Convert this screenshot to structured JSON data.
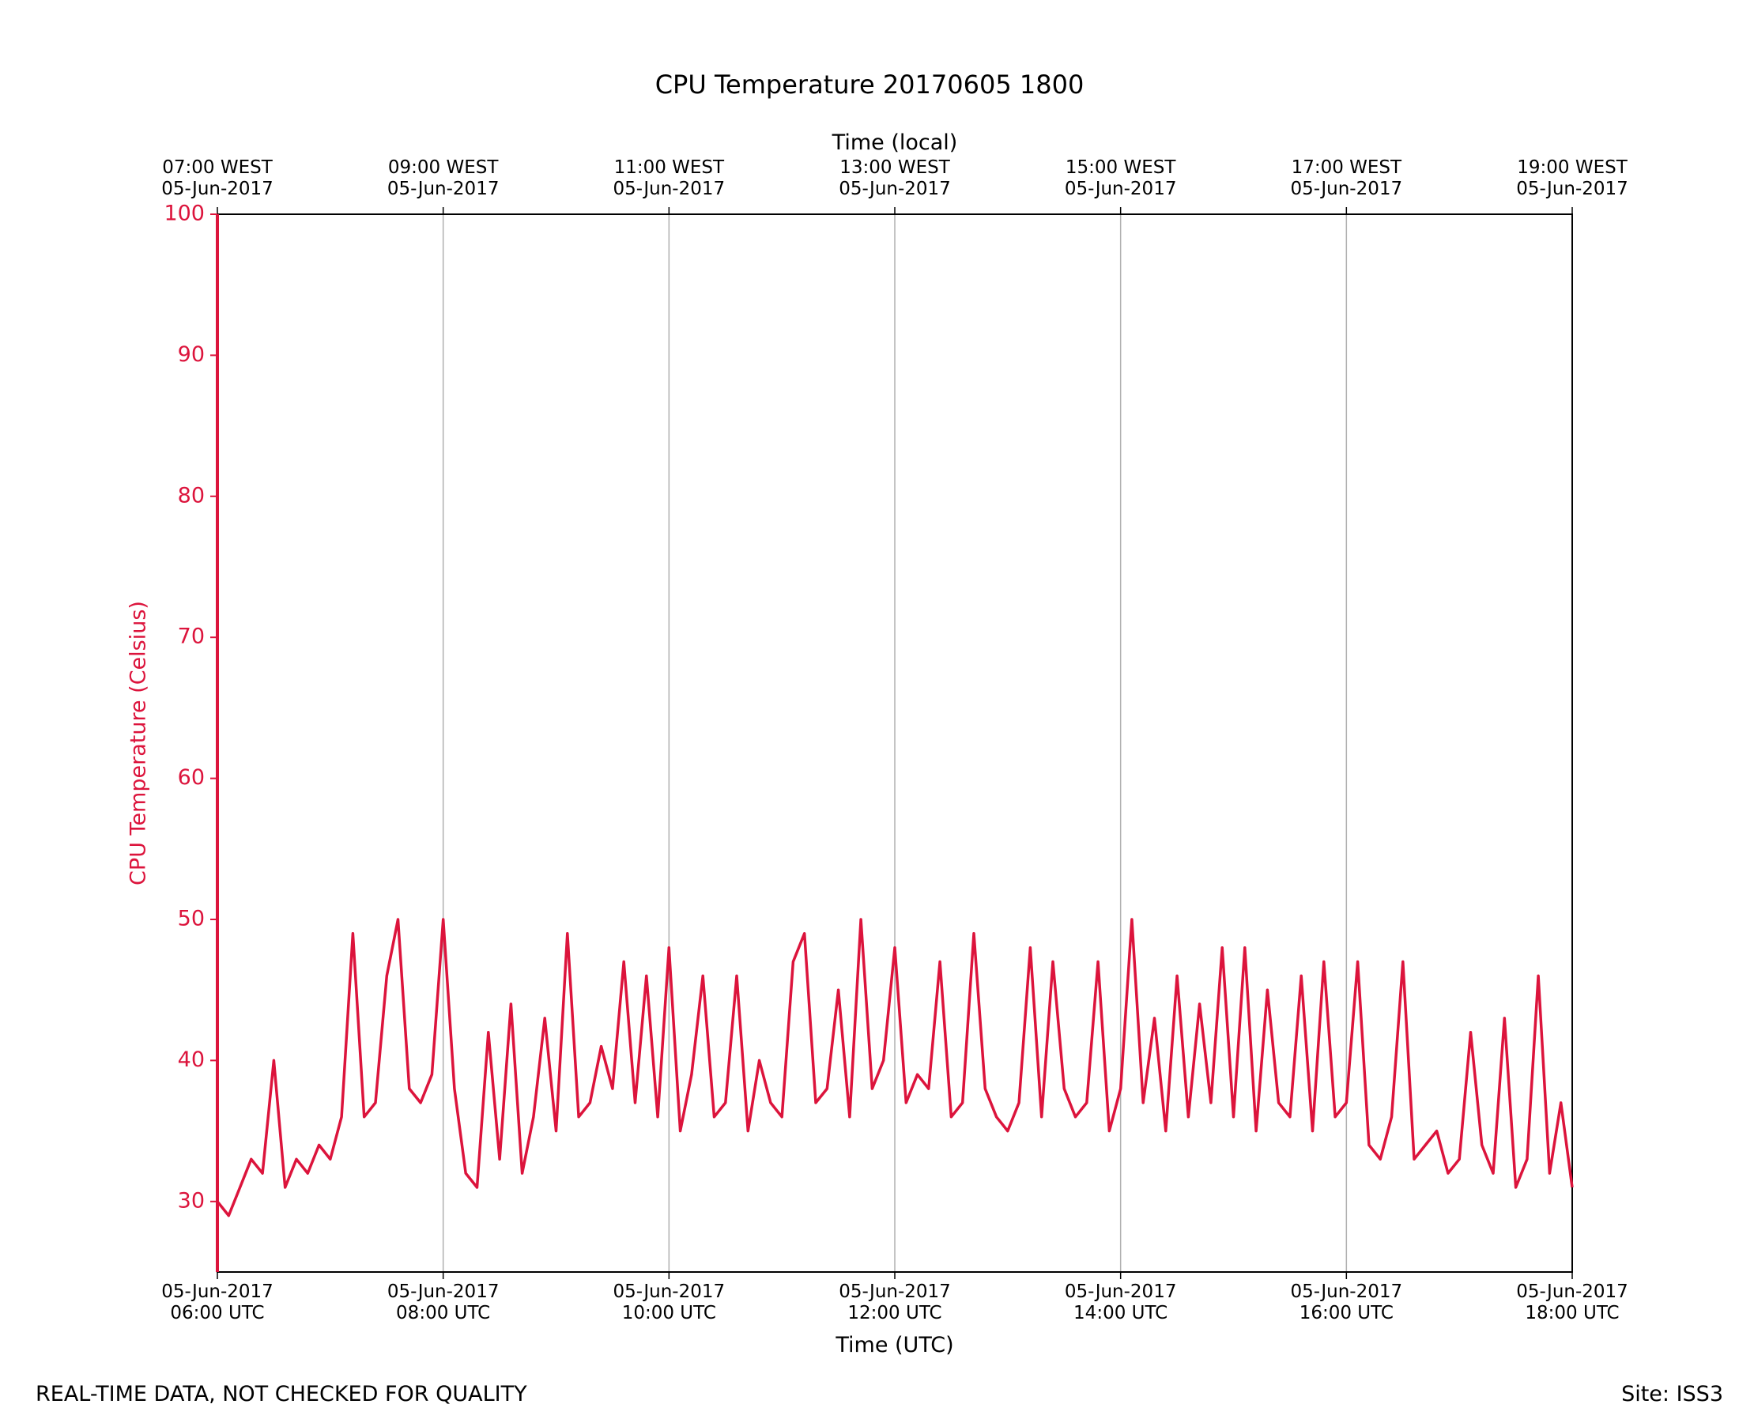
{
  "chart_data": {
    "type": "line",
    "title": "CPU Temperature 20170605 1800",
    "xlabel": "Time (UTC)",
    "x2label": "Time (local)",
    "ylabel": "CPU Temperature (Celsius)",
    "footer_left": "REAL-TIME DATA, NOT CHECKED FOR QUALITY",
    "footer_right": "Site: ISS3",
    "color": "#dc143c",
    "grid": "x",
    "x": [
      6,
      6.1,
      6.2,
      6.3,
      6.4,
      6.5,
      6.6,
      6.7,
      6.8,
      6.9,
      7,
      7.1,
      7.2,
      7.3,
      7.4,
      7.5,
      7.6,
      7.7,
      7.8,
      7.9,
      8,
      8.1,
      8.2,
      8.3,
      8.4,
      8.5,
      8.6,
      8.7,
      8.8,
      8.9,
      9,
      9.1,
      9.2,
      9.3,
      9.4,
      9.5,
      9.6,
      9.7,
      9.8,
      9.9,
      10,
      10.1,
      10.2,
      10.3,
      10.4,
      10.5,
      10.6,
      10.7,
      10.8,
      10.9,
      11,
      11.1,
      11.2,
      11.3,
      11.4,
      11.5,
      11.6,
      11.7,
      11.8,
      11.9,
      12,
      12.1,
      12.2,
      12.3,
      12.4,
      12.5,
      12.6,
      12.7,
      12.8,
      12.9,
      13,
      13.1,
      13.2,
      13.3,
      13.4,
      13.5,
      13.6,
      13.7,
      13.8,
      13.9,
      14,
      14.1,
      14.2,
      14.3,
      14.4,
      14.5,
      14.6,
      14.7,
      14.8,
      14.9,
      15,
      15.1,
      15.2,
      15.3,
      15.4,
      15.5,
      15.6,
      15.7,
      15.8,
      15.9,
      16,
      16.1,
      16.2,
      16.3,
      16.4,
      16.5,
      16.6,
      16.7,
      16.8,
      16.9,
      17,
      17.1,
      17.2,
      17.3,
      17.4,
      17.5,
      17.6,
      17.7,
      17.8,
      17.9,
      18
    ],
    "values": [
      30,
      29,
      31,
      33,
      32,
      40,
      31,
      33,
      32,
      34,
      33,
      36,
      49,
      36,
      37,
      46,
      50,
      38,
      37,
      39,
      50,
      38,
      32,
      31,
      42,
      33,
      44,
      32,
      36,
      43,
      35,
      49,
      36,
      37,
      41,
      38,
      47,
      37,
      46,
      36,
      48,
      35,
      39,
      46,
      36,
      37,
      46,
      35,
      40,
      37,
      36,
      47,
      49,
      37,
      38,
      45,
      36,
      50,
      38,
      40,
      48,
      37,
      39,
      38,
      47,
      36,
      37,
      49,
      38,
      36,
      35,
      37,
      48,
      36,
      47,
      38,
      36,
      37,
      47,
      35,
      38,
      50,
      37,
      43,
      35,
      46,
      36,
      44,
      37,
      48,
      36,
      48,
      35,
      45,
      37,
      36,
      46,
      35,
      47,
      36,
      37,
      47,
      34,
      33,
      36,
      47,
      33,
      34,
      35,
      32,
      33,
      42,
      34,
      32,
      43,
      31,
      33,
      46,
      32,
      37,
      31
    ],
    "xlim": [
      6,
      18
    ],
    "xticks": [
      {
        "value": 6,
        "label": "05-Jun-2017\n06:00 UTC"
      },
      {
        "value": 8,
        "label": "05-Jun-2017\n08:00 UTC"
      },
      {
        "value": 10,
        "label": "05-Jun-2017\n10:00 UTC"
      },
      {
        "value": 12,
        "label": "05-Jun-2017\n12:00 UTC"
      },
      {
        "value": 14,
        "label": "05-Jun-2017\n14:00 UTC"
      },
      {
        "value": 16,
        "label": "05-Jun-2017\n16:00 UTC"
      },
      {
        "value": 18,
        "label": "05-Jun-2017\n18:00 UTC"
      }
    ],
    "x2ticks": [
      {
        "value": 6,
        "label": "07:00 WEST\n05-Jun-2017"
      },
      {
        "value": 8,
        "label": "09:00 WEST\n05-Jun-2017"
      },
      {
        "value": 10,
        "label": "11:00 WEST\n05-Jun-2017"
      },
      {
        "value": 12,
        "label": "13:00 WEST\n05-Jun-2017"
      },
      {
        "value": 14,
        "label": "15:00 WEST\n05-Jun-2017"
      },
      {
        "value": 16,
        "label": "17:00 WEST\n05-Jun-2017"
      },
      {
        "value": 18,
        "label": "19:00 WEST\n05-Jun-2017"
      }
    ],
    "ylim": [
      25,
      100
    ],
    "yticks": [
      30,
      40,
      50,
      60,
      70,
      80,
      90,
      100
    ]
  }
}
